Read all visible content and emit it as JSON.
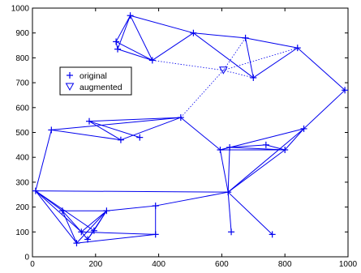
{
  "colors": {
    "series": "#0000ee",
    "axis": "#000000",
    "background": "#ffffff"
  },
  "chart_data": {
    "type": "scatter",
    "title": "",
    "xlabel": "",
    "ylabel": "",
    "xlim": [
      0,
      1000
    ],
    "ylim": [
      0,
      1000
    ],
    "xticks": [
      0,
      200,
      400,
      600,
      800,
      1000
    ],
    "yticks": [
      0,
      100,
      200,
      300,
      400,
      500,
      600,
      700,
      800,
      900,
      1000
    ],
    "grid": false,
    "legend": {
      "placement": "upper-left",
      "entries": [
        {
          "label": "original",
          "marker": "+"
        },
        {
          "label": "augmented",
          "marker": "triangle-down"
        }
      ]
    },
    "series": [
      {
        "name": "original",
        "marker": "+",
        "points": [
          [
            310,
            970
          ],
          [
            265,
            865
          ],
          [
            270,
            835
          ],
          [
            380,
            790
          ],
          [
            510,
            900
          ],
          [
            675,
            880
          ],
          [
            700,
            720
          ],
          [
            840,
            840
          ],
          [
            990,
            670
          ],
          [
            470,
            560
          ],
          [
            180,
            545
          ],
          [
            60,
            510
          ],
          [
            280,
            470
          ],
          [
            340,
            480
          ],
          [
            860,
            515
          ],
          [
            740,
            450
          ],
          [
            625,
            440
          ],
          [
            800,
            430
          ],
          [
            595,
            430
          ],
          [
            620,
            260
          ],
          [
            10,
            265
          ],
          [
            95,
            185
          ],
          [
            235,
            185
          ],
          [
            155,
            100
          ],
          [
            195,
            105
          ],
          [
            175,
            70
          ],
          [
            140,
            55
          ],
          [
            390,
            90
          ],
          [
            390,
            205
          ],
          [
            630,
            100
          ],
          [
            760,
            90
          ]
        ]
      },
      {
        "name": "augmented",
        "marker": "triangle-down",
        "points": [
          [
            605,
            750
          ]
        ]
      }
    ],
    "edges": [
      [
        0,
        1
      ],
      [
        0,
        2
      ],
      [
        0,
        3
      ],
      [
        1,
        2
      ],
      [
        1,
        3
      ],
      [
        2,
        3
      ],
      [
        0,
        4
      ],
      [
        3,
        4
      ],
      [
        4,
        5
      ],
      [
        4,
        6
      ],
      [
        5,
        6
      ],
      [
        5,
        7
      ],
      [
        6,
        7
      ],
      [
        7,
        8
      ],
      [
        8,
        14
      ],
      [
        14,
        17
      ],
      [
        14,
        18
      ],
      [
        14,
        19
      ],
      [
        15,
        16
      ],
      [
        15,
        17
      ],
      [
        16,
        17
      ],
      [
        16,
        18
      ],
      [
        17,
        18
      ],
      [
        17,
        19
      ],
      [
        9,
        18
      ],
      [
        9,
        10
      ],
      [
        9,
        11
      ],
      [
        9,
        12
      ],
      [
        10,
        12
      ],
      [
        10,
        13
      ],
      [
        11,
        12
      ],
      [
        11,
        20
      ],
      [
        20,
        21
      ],
      [
        20,
        23
      ],
      [
        20,
        24
      ],
      [
        20,
        26
      ],
      [
        20,
        19
      ],
      [
        21,
        22
      ],
      [
        21,
        23
      ],
      [
        21,
        26
      ],
      [
        22,
        23
      ],
      [
        22,
        25
      ],
      [
        22,
        26
      ],
      [
        22,
        28
      ],
      [
        23,
        25
      ],
      [
        23,
        27
      ],
      [
        24,
        25
      ],
      [
        26,
        27
      ],
      [
        24,
        22
      ],
      [
        28,
        27
      ],
      [
        19,
        28
      ],
      [
        19,
        29
      ],
      [
        19,
        30
      ],
      [
        19,
        18
      ],
      [
        16,
        19
      ]
    ],
    "augmented_edges": [
      [
        3,
        0
      ],
      [
        6,
        0
      ],
      [
        7,
        0
      ],
      [
        9,
        0
      ],
      [
        5,
        0
      ]
    ]
  }
}
